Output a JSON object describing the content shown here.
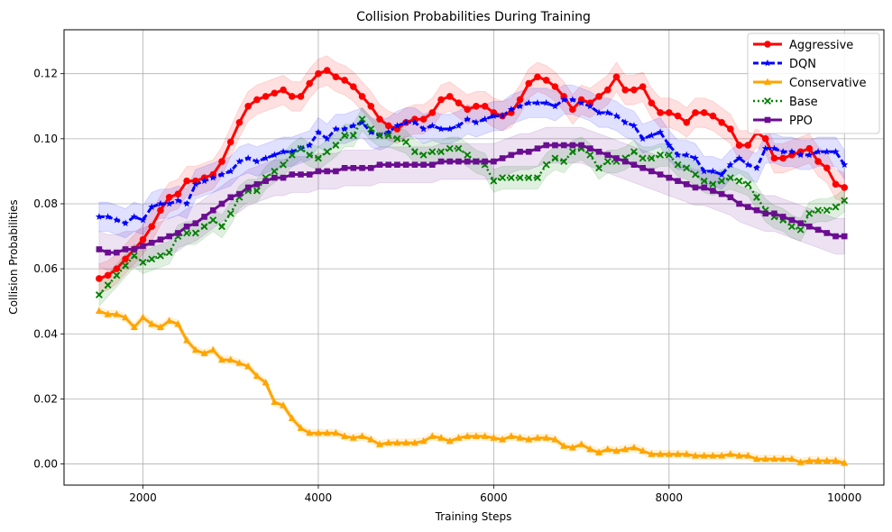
{
  "chart_data": {
    "type": "line",
    "title": "Collision Probabilities During Training",
    "xlabel": "Training Steps",
    "ylabel": "Collision Probabilities",
    "xlim": [
      1100,
      10450
    ],
    "ylim": [
      -0.0065,
      0.1335
    ],
    "xticks": [
      2000,
      4000,
      6000,
      8000,
      10000
    ],
    "xtick_labels": [
      "2000",
      "4000",
      "6000",
      "8000",
      "10000"
    ],
    "yticks": [
      0.0,
      0.02,
      0.04,
      0.06,
      0.08,
      0.1,
      0.12
    ],
    "ytick_labels": [
      "0.00",
      "0.02",
      "0.04",
      "0.06",
      "0.08",
      "0.10",
      "0.12"
    ],
    "grid": true,
    "legend_position": "top-right",
    "x": [
      1500,
      1600,
      1700,
      1800,
      1900,
      2000,
      2100,
      2200,
      2300,
      2400,
      2500,
      2600,
      2700,
      2800,
      2900,
      3000,
      3100,
      3200,
      3300,
      3400,
      3500,
      3600,
      3700,
      3800,
      3900,
      4000,
      4100,
      4200,
      4300,
      4400,
      4500,
      4600,
      4700,
      4800,
      4900,
      5000,
      5100,
      5200,
      5300,
      5400,
      5500,
      5600,
      5700,
      5800,
      5900,
      6000,
      6100,
      6200,
      6300,
      6400,
      6500,
      6600,
      6700,
      6800,
      6900,
      7000,
      7100,
      7200,
      7300,
      7400,
      7500,
      7600,
      7700,
      7800,
      7900,
      8000,
      8100,
      8200,
      8300,
      8400,
      8500,
      8600,
      8700,
      8800,
      8900,
      9000,
      9100,
      9200,
      9300,
      9400,
      9500,
      9600,
      9700,
      9800,
      9900,
      10000
    ],
    "series": [
      {
        "name": "Aggressive",
        "color": "#ff0000",
        "marker": "circle",
        "band": 0.0045,
        "values": [
          0.057,
          0.058,
          0.06,
          0.063,
          0.066,
          0.069,
          0.073,
          0.078,
          0.082,
          0.083,
          0.087,
          0.087,
          0.088,
          0.089,
          0.093,
          0.099,
          0.105,
          0.11,
          0.112,
          0.113,
          0.114,
          0.115,
          0.113,
          0.113,
          0.117,
          0.12,
          0.121,
          0.119,
          0.118,
          0.116,
          0.113,
          0.11,
          0.106,
          0.104,
          0.103,
          0.105,
          0.106,
          0.106,
          0.108,
          0.112,
          0.113,
          0.111,
          0.109,
          0.11,
          0.11,
          0.108,
          0.107,
          0.108,
          0.112,
          0.117,
          0.119,
          0.118,
          0.116,
          0.113,
          0.109,
          0.112,
          0.111,
          0.113,
          0.115,
          0.119,
          0.115,
          0.115,
          0.116,
          0.111,
          0.108,
          0.108,
          0.107,
          0.105,
          0.108,
          0.108,
          0.107,
          0.105,
          0.103,
          0.098,
          0.098,
          0.102,
          0.1,
          0.094,
          0.094,
          0.095,
          0.096,
          0.097,
          0.093,
          0.091,
          0.086,
          0.085
        ]
      },
      {
        "name": "DQN",
        "color": "#0000ff",
        "marker": "star",
        "band": 0.0045,
        "values": [
          0.076,
          0.076,
          0.075,
          0.074,
          0.076,
          0.075,
          0.079,
          0.08,
          0.08,
          0.081,
          0.08,
          0.086,
          0.087,
          0.088,
          0.089,
          0.09,
          0.093,
          0.094,
          0.093,
          0.094,
          0.095,
          0.096,
          0.096,
          0.097,
          0.098,
          0.102,
          0.1,
          0.103,
          0.103,
          0.104,
          0.105,
          0.102,
          0.101,
          0.102,
          0.104,
          0.105,
          0.105,
          0.103,
          0.104,
          0.103,
          0.103,
          0.104,
          0.106,
          0.105,
          0.106,
          0.107,
          0.107,
          0.109,
          0.11,
          0.111,
          0.111,
          0.111,
          0.11,
          0.112,
          0.112,
          0.111,
          0.11,
          0.108,
          0.108,
          0.107,
          0.105,
          0.104,
          0.1,
          0.101,
          0.102,
          0.098,
          0.095,
          0.095,
          0.094,
          0.09,
          0.09,
          0.089,
          0.092,
          0.094,
          0.092,
          0.091,
          0.097,
          0.097,
          0.096,
          0.096,
          0.095,
          0.095,
          0.096,
          0.096,
          0.096,
          0.092
        ]
      },
      {
        "name": "Conservative",
        "color": "#ffa500",
        "marker": "triangle",
        "band": 0.0012,
        "values": [
          0.047,
          0.046,
          0.046,
          0.045,
          0.042,
          0.045,
          0.043,
          0.042,
          0.044,
          0.043,
          0.038,
          0.035,
          0.034,
          0.035,
          0.032,
          0.032,
          0.031,
          0.03,
          0.027,
          0.025,
          0.019,
          0.018,
          0.014,
          0.011,
          0.0095,
          0.0095,
          0.0095,
          0.0095,
          0.0085,
          0.008,
          0.0085,
          0.0075,
          0.006,
          0.0065,
          0.0065,
          0.0065,
          0.0065,
          0.007,
          0.0085,
          0.008,
          0.007,
          0.008,
          0.0085,
          0.0085,
          0.0085,
          0.008,
          0.0075,
          0.0085,
          0.008,
          0.0075,
          0.008,
          0.008,
          0.0075,
          0.0055,
          0.005,
          0.006,
          0.0045,
          0.0035,
          0.0045,
          0.004,
          0.0045,
          0.005,
          0.004,
          0.003,
          0.003,
          0.003,
          0.003,
          0.003,
          0.0025,
          0.0025,
          0.0025,
          0.0025,
          0.003,
          0.0025,
          0.0025,
          0.0015,
          0.0015,
          0.0015,
          0.0015,
          0.0015,
          0.0005,
          0.001,
          0.001,
          0.001,
          0.001,
          0.0003
        ]
      },
      {
        "name": "Base",
        "color": "#008000",
        "marker": "x",
        "band": 0.0035,
        "values": [
          0.052,
          0.055,
          0.058,
          0.061,
          0.064,
          0.062,
          0.063,
          0.064,
          0.065,
          0.07,
          0.071,
          0.071,
          0.073,
          0.075,
          0.073,
          0.077,
          0.082,
          0.084,
          0.084,
          0.088,
          0.09,
          0.092,
          0.095,
          0.097,
          0.095,
          0.094,
          0.096,
          0.098,
          0.101,
          0.101,
          0.106,
          0.103,
          0.101,
          0.101,
          0.1,
          0.099,
          0.096,
          0.095,
          0.096,
          0.096,
          0.097,
          0.097,
          0.095,
          0.093,
          0.092,
          0.087,
          0.088,
          0.088,
          0.088,
          0.088,
          0.088,
          0.092,
          0.094,
          0.093,
          0.096,
          0.097,
          0.095,
          0.091,
          0.093,
          0.093,
          0.094,
          0.096,
          0.094,
          0.094,
          0.095,
          0.095,
          0.092,
          0.091,
          0.089,
          0.087,
          0.086,
          0.087,
          0.088,
          0.087,
          0.086,
          0.082,
          0.078,
          0.076,
          0.075,
          0.073,
          0.072,
          0.077,
          0.078,
          0.078,
          0.079,
          0.081
        ]
      },
      {
        "name": "PPO",
        "color": "#6a0d91",
        "marker": "square",
        "band": 0.0055,
        "values": [
          0.066,
          0.065,
          0.065,
          0.066,
          0.066,
          0.067,
          0.068,
          0.069,
          0.07,
          0.071,
          0.073,
          0.074,
          0.076,
          0.078,
          0.08,
          0.082,
          0.083,
          0.085,
          0.086,
          0.087,
          0.088,
          0.088,
          0.089,
          0.089,
          0.089,
          0.09,
          0.09,
          0.09,
          0.091,
          0.091,
          0.091,
          0.091,
          0.092,
          0.092,
          0.092,
          0.092,
          0.092,
          0.092,
          0.092,
          0.093,
          0.093,
          0.093,
          0.093,
          0.093,
          0.093,
          0.093,
          0.094,
          0.095,
          0.096,
          0.096,
          0.097,
          0.098,
          0.098,
          0.098,
          0.098,
          0.098,
          0.097,
          0.096,
          0.095,
          0.094,
          0.093,
          0.092,
          0.091,
          0.09,
          0.089,
          0.088,
          0.087,
          0.086,
          0.085,
          0.085,
          0.084,
          0.083,
          0.082,
          0.08,
          0.079,
          0.078,
          0.077,
          0.077,
          0.076,
          0.075,
          0.074,
          0.073,
          0.072,
          0.071,
          0.07,
          0.07
        ]
      }
    ]
  }
}
